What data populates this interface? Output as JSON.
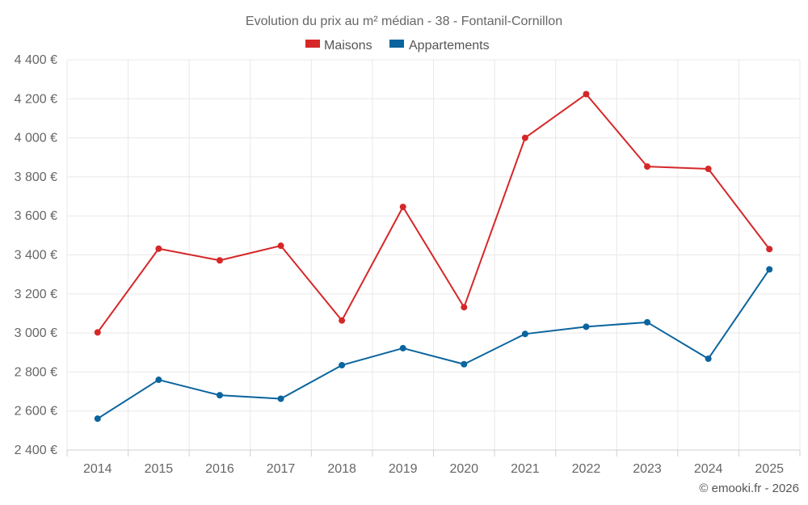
{
  "chart_data": {
    "type": "line",
    "title": "Evolution du prix au m² médian - 38 - Fontanil-Cornillon",
    "x": [
      "2014",
      "2015",
      "2016",
      "2017",
      "2018",
      "2019",
      "2020",
      "2021",
      "2022",
      "2023",
      "2024",
      "2025"
    ],
    "series": [
      {
        "name": "Maisons",
        "color": "#d62728",
        "values": [
          3003,
          3432,
          3372,
          3447,
          3064,
          3646,
          3132,
          4000,
          4224,
          3853,
          3841,
          3430
        ]
      },
      {
        "name": "Appartements",
        "color": "#0a649e",
        "values": [
          2561,
          2760,
          2681,
          2663,
          2835,
          2922,
          2840,
          2995,
          3032,
          3055,
          2868,
          3326
        ]
      }
    ],
    "ylim": [
      2400,
      4400
    ],
    "yticks": [
      2400,
      2600,
      2800,
      3000,
      3200,
      3400,
      3600,
      3800,
      4000,
      4200,
      4400
    ],
    "ytick_labels": [
      "2 400 €",
      "2 600 €",
      "2 800 €",
      "3 000 €",
      "3 200 €",
      "3 400 €",
      "3 600 €",
      "3 800 €",
      "4 000 €",
      "4 200 €",
      "4 400 €"
    ],
    "grid": true,
    "legend_position": "top-center"
  },
  "credit": "© emooki.fr - 2026"
}
